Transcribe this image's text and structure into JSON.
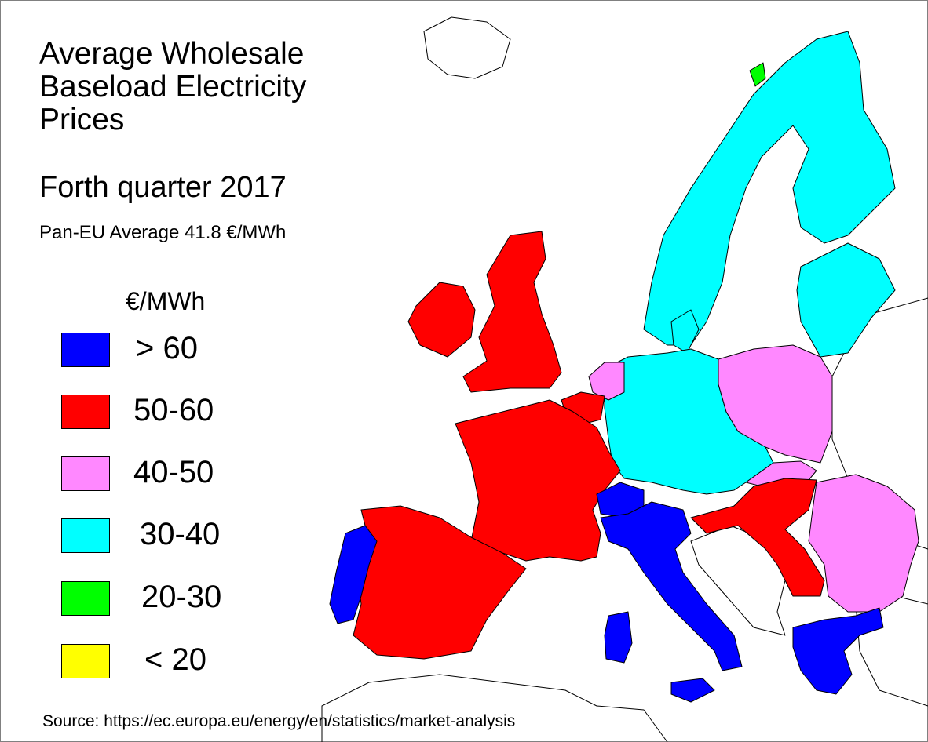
{
  "title": {
    "line1": "Average Wholesale",
    "line2": "Baseload Electricity",
    "line3": "Prices"
  },
  "subtitle": "Forth quarter 2017",
  "average": "Pan-EU Average 41.8 €/MWh",
  "legend": {
    "unit": "€/MWh",
    "items": [
      {
        "label": "> 60",
        "color": "#0000ff"
      },
      {
        "label": "50-60",
        "color": "#ff0000"
      },
      {
        "label": "40-50",
        "color": "#ff88ff"
      },
      {
        "label": "30-40",
        "color": "#00ffff"
      },
      {
        "label": "20-30",
        "color": "#00ff00"
      },
      {
        "label": "< 20",
        "color": "#ffff00"
      }
    ]
  },
  "colors": {
    "sea": "#ffffff",
    "non_member": "#ffffff",
    "border": "#000000"
  },
  "countries": [
    {
      "name": "Portugal",
      "band": "> 60"
    },
    {
      "name": "Switzerland",
      "band": "> 60"
    },
    {
      "name": "Italy",
      "band": "> 60"
    },
    {
      "name": "Greece",
      "band": "> 60"
    },
    {
      "name": "Ireland",
      "band": "50-60"
    },
    {
      "name": "United Kingdom",
      "band": "50-60"
    },
    {
      "name": "France",
      "band": "50-60"
    },
    {
      "name": "Spain",
      "band": "50-60"
    },
    {
      "name": "Belgium",
      "band": "50-60"
    },
    {
      "name": "Hungary",
      "band": "50-60"
    },
    {
      "name": "Slovenia",
      "band": "50-60"
    },
    {
      "name": "Serbia",
      "band": "50-60"
    },
    {
      "name": "Netherlands",
      "band": "40-50"
    },
    {
      "name": "Poland",
      "band": "40-50"
    },
    {
      "name": "Slovakia",
      "band": "40-50"
    },
    {
      "name": "Romania",
      "band": "40-50"
    },
    {
      "name": "Bulgaria",
      "band": "40-50"
    },
    {
      "name": "Norway",
      "band": "30-40"
    },
    {
      "name": "Sweden",
      "band": "30-40"
    },
    {
      "name": "Finland",
      "band": "30-40"
    },
    {
      "name": "Denmark",
      "band": "30-40"
    },
    {
      "name": "Germany",
      "band": "30-40"
    },
    {
      "name": "Czech Republic",
      "band": "30-40"
    },
    {
      "name": "Austria",
      "band": "30-40"
    },
    {
      "name": "Estonia",
      "band": "30-40"
    },
    {
      "name": "Latvia",
      "band": "30-40"
    },
    {
      "name": "Lithuania",
      "band": "30-40"
    },
    {
      "name": "Northern Norway",
      "band": "20-30"
    }
  ],
  "source": "Source: https://ec.europa.eu/energy/en/statistics/market-analysis"
}
